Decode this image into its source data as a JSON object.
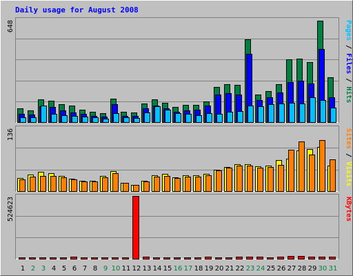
{
  "chart_data": {
    "type": "bar",
    "title": "Daily usage for August 2008",
    "categories": [
      "1",
      "2",
      "3",
      "4",
      "5",
      "6",
      "7",
      "8",
      "9",
      "10",
      "11",
      "12",
      "13",
      "14",
      "15",
      "16",
      "17",
      "18",
      "19",
      "20",
      "21",
      "22",
      "23",
      "24",
      "25",
      "26",
      "27",
      "28",
      "29",
      "30",
      "31"
    ],
    "weekend_days": [
      2,
      3,
      9,
      10,
      16,
      17,
      23,
      24,
      30,
      31
    ],
    "top_panel": {
      "max_label": "648",
      "ylim": [
        0,
        648
      ],
      "series": [
        {
          "name": "Hits",
          "color": "#008040",
          "values": [
            86,
            75,
            142,
            136,
            112,
            106,
            80,
            66,
            55,
            146,
            64,
            59,
            118,
            142,
            120,
            95,
            109,
            110,
            132,
            221,
            238,
            234,
            522,
            175,
            196,
            241,
            397,
            399,
            380,
            640,
            282
          ]
        },
        {
          "name": "Files",
          "color": "#0000ff",
          "values": [
            54,
            48,
            101,
            97,
            73,
            62,
            52,
            40,
            35,
            114,
            38,
            40,
            86,
            104,
            85,
            66,
            76,
            77,
            104,
            176,
            181,
            176,
            432,
            138,
            155,
            185,
            251,
            262,
            245,
            462,
            157
          ]
        },
        {
          "name": "Pages",
          "color": "#00c0ff",
          "values": [
            31,
            30,
            106,
            51,
            42,
            41,
            35,
            31,
            23,
            55,
            32,
            27,
            63,
            98,
            79,
            58,
            51,
            45,
            56,
            52,
            67,
            68,
            106,
            99,
            113,
            118,
            120,
            118,
            155,
            141,
            93
          ]
        }
      ]
    },
    "middle_panel": {
      "max_label": "136",
      "ylim": [
        0,
        136
      ],
      "series": [
        {
          "name": "Visits",
          "color": "#ffff00",
          "values": [
            28,
            36,
            41,
            39,
            32,
            26,
            22,
            22,
            33,
            43,
            18,
            14,
            22,
            34,
            37,
            30,
            34,
            34,
            37,
            46,
            52,
            57,
            57,
            53,
            55,
            67,
            70,
            87,
            90,
            94,
            55
          ]
        },
        {
          "name": "Sites",
          "color": "#ff8000",
          "values": [
            25,
            31,
            33,
            33,
            30,
            25,
            21,
            20,
            29,
            39,
            17,
            14,
            20,
            31,
            33,
            28,
            31,
            31,
            34,
            44,
            50,
            54,
            54,
            50,
            52,
            56,
            89,
            107,
            78,
            110,
            68
          ]
        }
      ]
    },
    "bottom_panel": {
      "max_label": "524623",
      "ylim": [
        0,
        524623
      ],
      "series": [
        {
          "name": "KBytes",
          "color": "#ff0000",
          "values": [
            10000,
            10000,
            10000,
            10000,
            10000,
            17000,
            10000,
            10000,
            10000,
            10000,
            10000,
            524623,
            17000,
            10000,
            10000,
            10000,
            10000,
            10000,
            17000,
            10000,
            10000,
            17000,
            17000,
            17000,
            10000,
            17000,
            24000,
            24000,
            17000,
            17000,
            17000
          ]
        }
      ]
    },
    "right_labels": {
      "top": [
        {
          "text": "Pages",
          "color": "#00c0ff"
        },
        {
          "text": " / ",
          "color": "#000000"
        },
        {
          "text": "Files",
          "color": "#0000ff"
        },
        {
          "text": " / ",
          "color": "#000000"
        },
        {
          "text": "Hits",
          "color": "#008040"
        }
      ],
      "middle": [
        {
          "text": "Sites",
          "color": "#ff8000"
        },
        {
          "text": " / ",
          "color": "#000000"
        },
        {
          "text": "Visits",
          "color": "#ffff00"
        }
      ],
      "bottom": [
        {
          "text": "KBytes",
          "color": "#ff0000"
        }
      ]
    },
    "colors": {
      "background": "#c0c0c0",
      "title": "#0000ff",
      "weekday_label": "#000000",
      "weekend_label": "#008040"
    },
    "grid": true,
    "legend": "right-vertical"
  }
}
